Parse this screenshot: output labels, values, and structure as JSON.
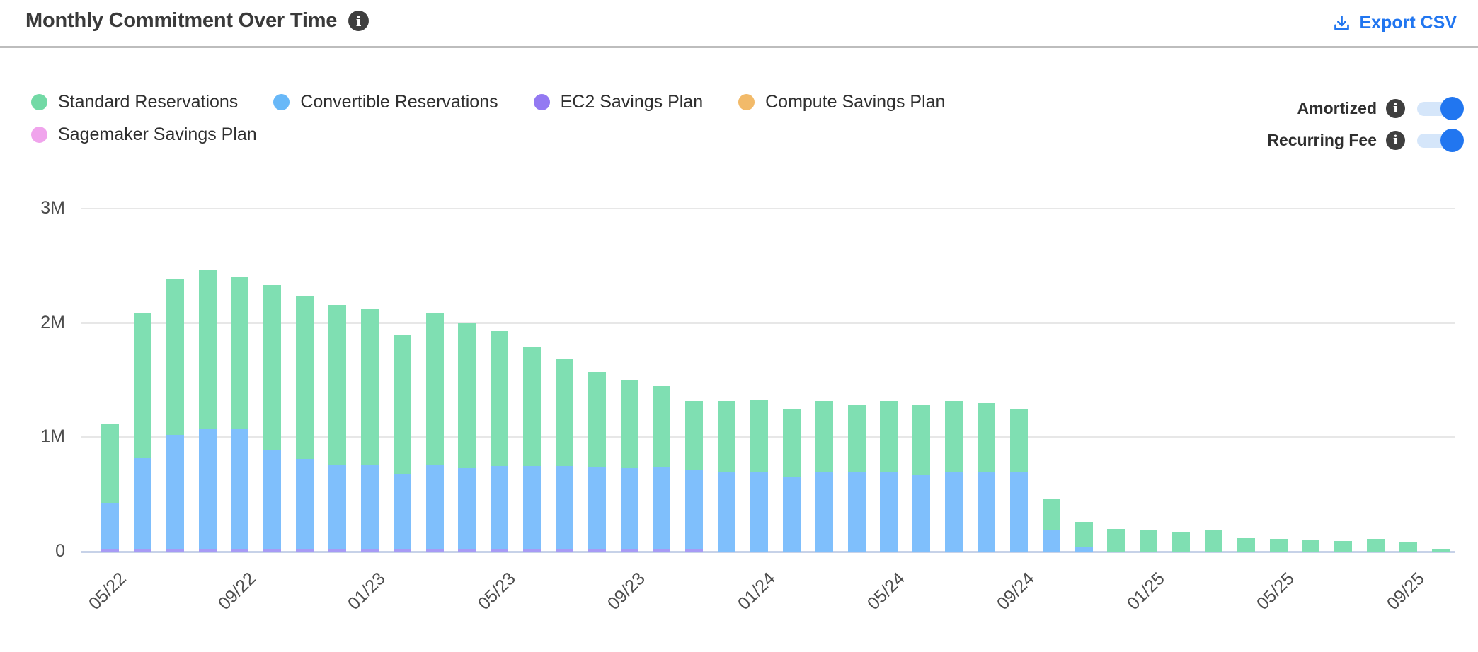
{
  "header": {
    "title": "Monthly Commitment Over Time",
    "export_label": "Export CSV"
  },
  "legend": {
    "items": [
      {
        "label": "Standard Reservations",
        "color": "#72d9a5"
      },
      {
        "label": "Convertible Reservations",
        "color": "#68b8f8"
      },
      {
        "label": "EC2 Savings Plan",
        "color": "#9379f2"
      },
      {
        "label": "Compute Savings Plan",
        "color": "#f2ba69"
      },
      {
        "label": "Sagemaker Savings Plan",
        "color": "#f0a4ec"
      }
    ]
  },
  "toggles": [
    {
      "label": "Amortized",
      "state": "on"
    },
    {
      "label": "Recurring Fee",
      "state": "on"
    }
  ],
  "colors": {
    "accent_blue": "#2176f0",
    "toggle_track": "#d5e6fa",
    "info_badge": "#3f3f3f",
    "baseline": "#c7d2e8",
    "gridline": "#e7e7e7"
  },
  "chart_data": {
    "type": "bar",
    "stacked": true,
    "title": "Monthly Commitment Over Time",
    "xlabel": "",
    "ylabel": "",
    "unit": "M (USD)",
    "ylim": [
      0,
      3
    ],
    "yticks": [
      "0",
      "1M",
      "2M",
      "3M"
    ],
    "grid": true,
    "legend_position": "top-left",
    "x_tick_every": 4,
    "categories": [
      "05/22",
      "06/22",
      "07/22",
      "08/22",
      "09/22",
      "10/22",
      "11/22",
      "12/22",
      "01/23",
      "02/23",
      "03/23",
      "04/23",
      "05/23",
      "06/23",
      "07/23",
      "08/23",
      "09/23",
      "10/23",
      "11/23",
      "12/23",
      "01/24",
      "02/24",
      "03/24",
      "04/24",
      "05/24",
      "06/24",
      "07/24",
      "08/24",
      "09/24",
      "10/24",
      "11/24",
      "12/24",
      "01/25",
      "02/25",
      "03/25",
      "04/25",
      "05/25",
      "06/25",
      "07/25",
      "08/25",
      "09/25",
      "10/25"
    ],
    "series": [
      {
        "name": "EC2 Savings Plan",
        "color": "#a79bf5",
        "values": [
          0.02,
          0.02,
          0.02,
          0.02,
          0.02,
          0.02,
          0.02,
          0.02,
          0.02,
          0.02,
          0.02,
          0.02,
          0.02,
          0.02,
          0.02,
          0.02,
          0.02,
          0.02,
          0.02,
          0,
          0,
          0,
          0,
          0,
          0,
          0,
          0,
          0,
          0,
          0,
          0,
          0,
          0,
          0,
          0,
          0,
          0,
          0,
          0,
          0,
          0,
          0
        ]
      },
      {
        "name": "Convertible Reservations",
        "color": "#7fbffc",
        "values": [
          0.4,
          0.8,
          1.0,
          1.05,
          1.05,
          0.87,
          0.79,
          0.74,
          0.74,
          0.66,
          0.74,
          0.71,
          0.73,
          0.73,
          0.73,
          0.72,
          0.71,
          0.72,
          0.7,
          0.7,
          0.7,
          0.65,
          0.7,
          0.69,
          0.69,
          0.67,
          0.7,
          0.7,
          0.7,
          0.19,
          0.045,
          0,
          0,
          0,
          0,
          0,
          0,
          0,
          0,
          0,
          0,
          0
        ]
      },
      {
        "name": "Standard Reservations",
        "color": "#7fdfb2",
        "values": [
          0.7,
          1.27,
          1.36,
          1.39,
          1.33,
          1.44,
          1.43,
          1.39,
          1.36,
          1.21,
          1.33,
          1.27,
          1.18,
          1.04,
          0.93,
          0.83,
          0.77,
          0.71,
          0.6,
          0.62,
          0.63,
          0.59,
          0.62,
          0.59,
          0.63,
          0.61,
          0.62,
          0.6,
          0.55,
          0.27,
          0.215,
          0.2,
          0.19,
          0.165,
          0.19,
          0.12,
          0.11,
          0.1,
          0.095,
          0.11,
          0.08,
          0.02
        ]
      },
      {
        "name": "Compute Savings Plan",
        "color": "#f2ba69",
        "values": [
          0,
          0,
          0,
          0,
          0,
          0,
          0,
          0,
          0,
          0,
          0,
          0,
          0,
          0,
          0,
          0,
          0,
          0,
          0,
          0,
          0,
          0,
          0,
          0,
          0,
          0,
          0,
          0,
          0,
          0,
          0,
          0,
          0,
          0,
          0,
          0,
          0,
          0,
          0,
          0,
          0,
          0
        ]
      },
      {
        "name": "Sagemaker Savings Plan",
        "color": "#f0a4ec",
        "values": [
          0,
          0,
          0,
          0,
          0,
          0,
          0,
          0,
          0,
          0,
          0,
          0,
          0,
          0,
          0,
          0,
          0,
          0,
          0,
          0,
          0,
          0,
          0,
          0,
          0,
          0,
          0,
          0,
          0,
          0,
          0,
          0,
          0,
          0,
          0,
          0,
          0,
          0,
          0,
          0,
          0,
          0
        ]
      }
    ]
  }
}
